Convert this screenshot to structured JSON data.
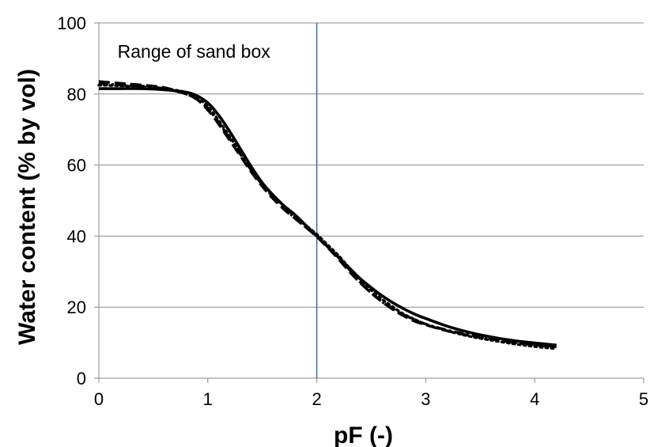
{
  "chart_data": {
    "type": "line",
    "title": "",
    "xlabel": "pF (-)",
    "ylabel": "Water content  (% by vol)",
    "xlim": [
      0,
      5
    ],
    "ylim": [
      0,
      100
    ],
    "xticks": [
      "0",
      "1",
      "2",
      "3",
      "4",
      "5"
    ],
    "yticks": [
      "0",
      "20",
      "40",
      "60",
      "80",
      "100"
    ],
    "grid": "horizontal",
    "legend": "none",
    "annotations": [
      {
        "text": "Range of sand box",
        "x": 0.15,
        "y": 92
      }
    ],
    "reference_lines": [
      {
        "orientation": "vertical",
        "x": 2,
        "color": "#4a6f9a"
      }
    ],
    "series": [
      {
        "style": "solid",
        "color": "#000000",
        "x": [
          0,
          0.2,
          0.4,
          0.6,
          0.8,
          0.9,
          1.0,
          1.1,
          1.2,
          1.3,
          1.4,
          1.5,
          1.6,
          1.7,
          1.8,
          1.9,
          2.0,
          2.1,
          2.2,
          2.3,
          2.4,
          2.5,
          2.6,
          2.7,
          2.8,
          2.9,
          3.0,
          3.2,
          3.4,
          3.6,
          3.8,
          4.0,
          4.2
        ],
        "y": [
          81.5,
          81.5,
          81.5,
          81.2,
          80.5,
          79.5,
          77.5,
          74.0,
          69.5,
          64.5,
          59.5,
          55.0,
          51.5,
          48.5,
          46.0,
          43.0,
          40.0,
          37.0,
          34.0,
          31.0,
          28.0,
          25.5,
          23.2,
          21.2,
          19.5,
          18.0,
          16.8,
          14.6,
          12.9,
          11.6,
          10.6,
          9.9,
          9.3
        ]
      },
      {
        "style": "dash",
        "color": "#000000",
        "x": [
          0,
          0.2,
          0.4,
          0.6,
          0.8,
          0.9,
          1.0,
          1.1,
          1.2,
          1.3,
          1.4,
          1.5,
          1.6,
          1.7,
          1.8,
          1.9,
          2.0,
          2.1,
          2.2,
          2.3,
          2.4,
          2.5,
          2.6,
          2.7,
          2.8,
          2.9,
          3.0,
          3.2,
          3.4,
          3.6,
          3.8,
          4.0,
          4.2
        ],
        "y": [
          83.5,
          83.0,
          82.5,
          81.8,
          80.0,
          78.5,
          75.5,
          71.5,
          67.0,
          62.5,
          58.0,
          54.0,
          50.5,
          47.5,
          45.0,
          42.5,
          39.8,
          36.8,
          33.5,
          30.0,
          26.8,
          24.0,
          21.5,
          19.3,
          17.5,
          16.0,
          15.0,
          13.3,
          12.0,
          11.0,
          10.1,
          9.4,
          8.8
        ]
      },
      {
        "style": "dash-dot",
        "color": "#000000",
        "x": [
          0,
          0.2,
          0.4,
          0.6,
          0.8,
          0.9,
          1.0,
          1.1,
          1.2,
          1.3,
          1.4,
          1.5,
          1.6,
          1.7,
          1.8,
          1.9,
          2.0,
          2.1,
          2.2,
          2.3,
          2.4,
          2.5,
          2.6,
          2.7,
          2.8,
          2.9,
          3.0,
          3.2,
          3.4,
          3.6,
          3.8,
          4.0,
          4.2
        ],
        "y": [
          83.0,
          82.5,
          82.2,
          81.5,
          80.0,
          78.5,
          76.0,
          72.0,
          67.5,
          63.0,
          58.5,
          54.5,
          51.0,
          48.0,
          45.0,
          42.5,
          40.0,
          37.0,
          34.0,
          30.5,
          27.0,
          24.0,
          21.5,
          19.5,
          17.8,
          16.5,
          15.2,
          13.5,
          12.2,
          11.1,
          10.2,
          9.5,
          8.9
        ]
      },
      {
        "style": "dot",
        "color": "#000000",
        "x": [
          0,
          0.2,
          0.4,
          0.6,
          0.8,
          0.9,
          1.0,
          1.1,
          1.2,
          1.3,
          1.4,
          1.5,
          1.6,
          1.7,
          1.8,
          1.9,
          2.0,
          2.1,
          2.2,
          2.3,
          2.4,
          2.5,
          2.6,
          2.7,
          2.8,
          2.9,
          3.0,
          3.2,
          3.4,
          3.6,
          3.8,
          4.0,
          4.2
        ],
        "y": [
          82.5,
          82.3,
          82.0,
          81.5,
          80.5,
          79.0,
          76.5,
          72.5,
          68.0,
          63.5,
          59.0,
          55.0,
          51.5,
          48.5,
          45.5,
          43.0,
          40.5,
          37.5,
          34.5,
          31.0,
          27.8,
          24.8,
          22.2,
          20.0,
          18.0,
          16.5,
          15.2,
          13.3,
          11.8,
          10.7,
          9.7,
          8.9,
          8.3
        ]
      }
    ]
  }
}
